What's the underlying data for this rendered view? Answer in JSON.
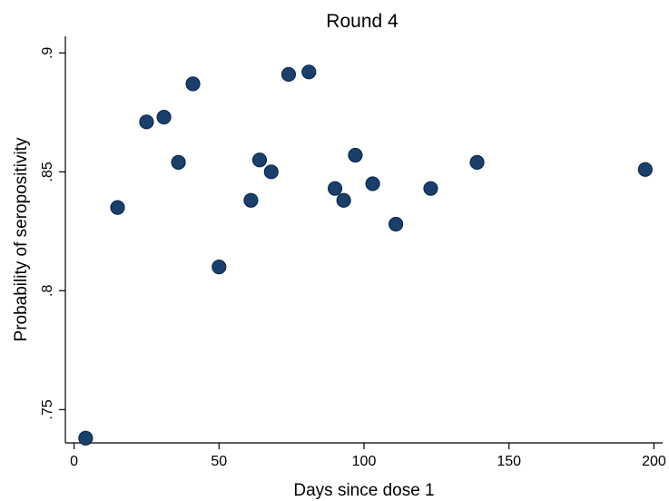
{
  "chart_data": {
    "type": "scatter",
    "title": "Round 4",
    "xlabel": "Days since dose 1",
    "ylabel": "Probability of seropositivity",
    "xlim": [
      -3,
      203
    ],
    "ylim": [
      0.736,
      0.907
    ],
    "x_ticks": [
      0,
      50,
      100,
      150,
      200
    ],
    "x_tick_labels": [
      "0",
      "50",
      "100",
      "150",
      "200"
    ],
    "y_ticks": [
      0.75,
      0.8,
      0.85,
      0.9
    ],
    "y_tick_labels": [
      ".75",
      ".8",
      ".85",
      ".9"
    ],
    "grid": false,
    "marker_color": "#1a3f6b",
    "points": [
      {
        "x": 4,
        "y": 0.738
      },
      {
        "x": 15,
        "y": 0.835
      },
      {
        "x": 25,
        "y": 0.871
      },
      {
        "x": 31,
        "y": 0.873
      },
      {
        "x": 36,
        "y": 0.854
      },
      {
        "x": 41,
        "y": 0.887
      },
      {
        "x": 50,
        "y": 0.81
      },
      {
        "x": 61,
        "y": 0.838
      },
      {
        "x": 64,
        "y": 0.855
      },
      {
        "x": 68,
        "y": 0.85
      },
      {
        "x": 74,
        "y": 0.891
      },
      {
        "x": 81,
        "y": 0.892
      },
      {
        "x": 90,
        "y": 0.843
      },
      {
        "x": 93,
        "y": 0.838
      },
      {
        "x": 97,
        "y": 0.857
      },
      {
        "x": 103,
        "y": 0.845
      },
      {
        "x": 111,
        "y": 0.828
      },
      {
        "x": 123,
        "y": 0.843
      },
      {
        "x": 139,
        "y": 0.854
      },
      {
        "x": 197,
        "y": 0.851
      }
    ]
  }
}
